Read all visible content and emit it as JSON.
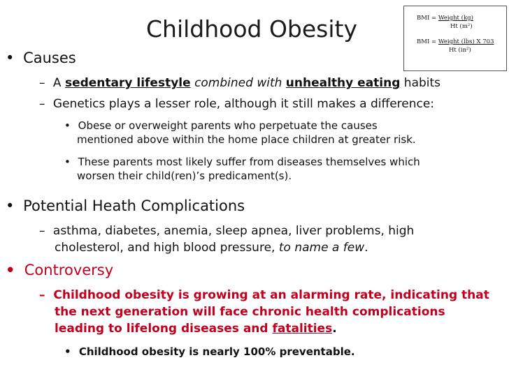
{
  "title": "Childhood Obesity",
  "bmi_box": {
    "line1_lhs": "BMI =",
    "line1_num": "Weight (kg)",
    "line1_den": "Ht (m²)",
    "line2_lhs": "BMI =",
    "line2_num": "Weight (lbs) X 703",
    "line2_den": "Ht (in²)"
  },
  "causes": {
    "heading": "Causes",
    "item1": {
      "a": "A",
      "sedentary": "sedentary lifestyle",
      "combined": "combined with",
      "unhealthy": "unhealthy eating",
      "habits": "habits"
    },
    "item2": "Genetics plays a lesser role, although it still makes a difference:",
    "sub1_line1": "Obese or overweight parents who perpetuate the causes",
    "sub1_line2": "mentioned above within the home place children at greater risk.",
    "sub2_line1": "These parents most likely suffer from diseases themselves which",
    "sub2_line2": "worsen their child(ren)’s predicament(s)."
  },
  "complications": {
    "heading": "Potential Heath Complications",
    "item_line1": "asthma, diabetes, anemia, sleep apnea, liver problems, high",
    "item_line2_a": "cholesterol, and high blood pressure,",
    "item_line2_b": "to name a few",
    "item_line2_c": "."
  },
  "controversy": {
    "heading": "Controversy",
    "item_line1": "Childhood obesity is growing at an alarming rate, indicating that",
    "item_line2": "the next generation will face chronic health complications",
    "item_line3_a": "leading to lifelong diseases and",
    "item_line3_b": "fatalities",
    "item_line3_c": ".",
    "sub": "Childhood obesity is nearly 100% preventable."
  },
  "colors": {
    "accent_red": "#c0001e",
    "text": "#111111"
  }
}
